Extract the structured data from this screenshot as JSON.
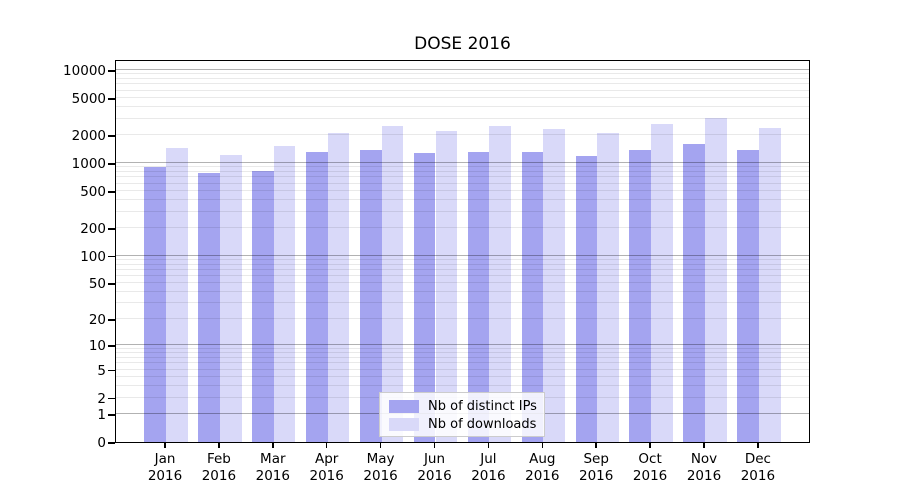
{
  "title": "DOSE 2016",
  "legend": {
    "items": [
      {
        "label": "Nb of distinct IPs",
        "color": "#a4a4f0"
      },
      {
        "label": "Nb of downloads",
        "color": "#d9d9f9"
      }
    ]
  },
  "chart_data": {
    "type": "bar",
    "title": "DOSE 2016",
    "categories": [
      "Jan 2016",
      "Feb 2016",
      "Mar 2016",
      "Apr 2016",
      "May 2016",
      "Jun 2016",
      "Jul 2016",
      "Aug 2016",
      "Sep 2016",
      "Oct 2016",
      "Nov 2016",
      "Dec 2016"
    ],
    "series": [
      {
        "name": "Nb of distinct IPs",
        "color": "#a4a4f0",
        "values": [
          910,
          780,
          820,
          1310,
          1380,
          1280,
          1320,
          1300,
          1200,
          1380,
          1600,
          1380
        ]
      },
      {
        "name": "Nb of downloads",
        "color": "#d9d9f9",
        "values": [
          1460,
          1230,
          1530,
          2100,
          2500,
          2200,
          2480,
          2320,
          2080,
          2650,
          3050,
          2350
        ]
      }
    ],
    "yscale": "log1p",
    "ytick_values": [
      0,
      1,
      2,
      5,
      10,
      20,
      50,
      100,
      200,
      500,
      1000,
      2000,
      5000,
      10000
    ],
    "ytick_labels": [
      "0",
      "1",
      "2",
      "5",
      "10",
      "20",
      "50",
      "100",
      "200",
      "500",
      "1000",
      "2000",
      "5000",
      "10000"
    ],
    "ylim": [
      0,
      13000
    ],
    "grid": "horizontal",
    "legend_position": "lower center"
  }
}
